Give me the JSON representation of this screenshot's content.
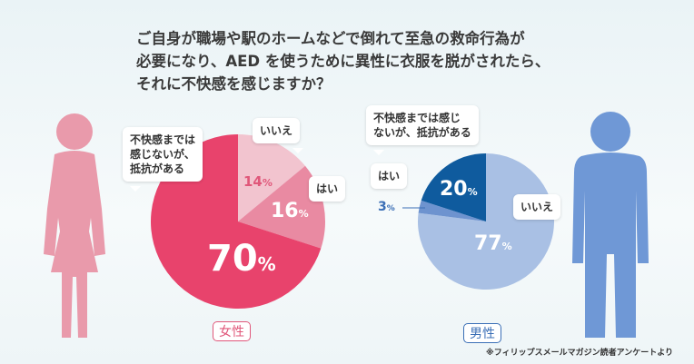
{
  "title": {
    "lines": [
      "ご自身が職場や駅のホームなどで倒れて至急の救命行為が",
      "必要になり、AED を使うために異性に衣服を脱がされたら、",
      "それに不快感を感じますか？"
    ]
  },
  "note": "※フィリップスメールマガジン読者アンケートより",
  "chart_data": [
    {
      "type": "pie",
      "title": "女性",
      "slices": [
        {
          "label": "いいえ",
          "value": 14,
          "display": "14",
          "color": "#f2c4cf"
        },
        {
          "label": "はい",
          "value": 16,
          "display": "16",
          "color": "#e98aa2"
        },
        {
          "label": "不快感までは感じないが、抵抗がある",
          "value": 70,
          "display": "70",
          "color": "#e8436c"
        }
      ]
    },
    {
      "type": "pie",
      "title": "男性",
      "slices": [
        {
          "label": "いいえ",
          "value": 77,
          "display": "77",
          "color": "#a9c0e4"
        },
        {
          "label": "はい",
          "value": 3,
          "display": "3",
          "color": "#6e93cf"
        },
        {
          "label": "不快感までは感じないが、抵抗がある",
          "value": 20,
          "display": "20",
          "color": "#0f5b9e"
        }
      ]
    }
  ],
  "labels": {
    "female_discomfort_l1": "不快感までは",
    "female_discomfort_l2": "感じないが、",
    "female_discomfort_l3": "抵抗がある",
    "male_discomfort_l1": "不快感までは感じ",
    "male_discomfort_l2": "ないが、抵抗がある",
    "pct": "%"
  },
  "colors": {
    "female_figure": "#e99aab",
    "male_figure": "#6f98d6"
  }
}
